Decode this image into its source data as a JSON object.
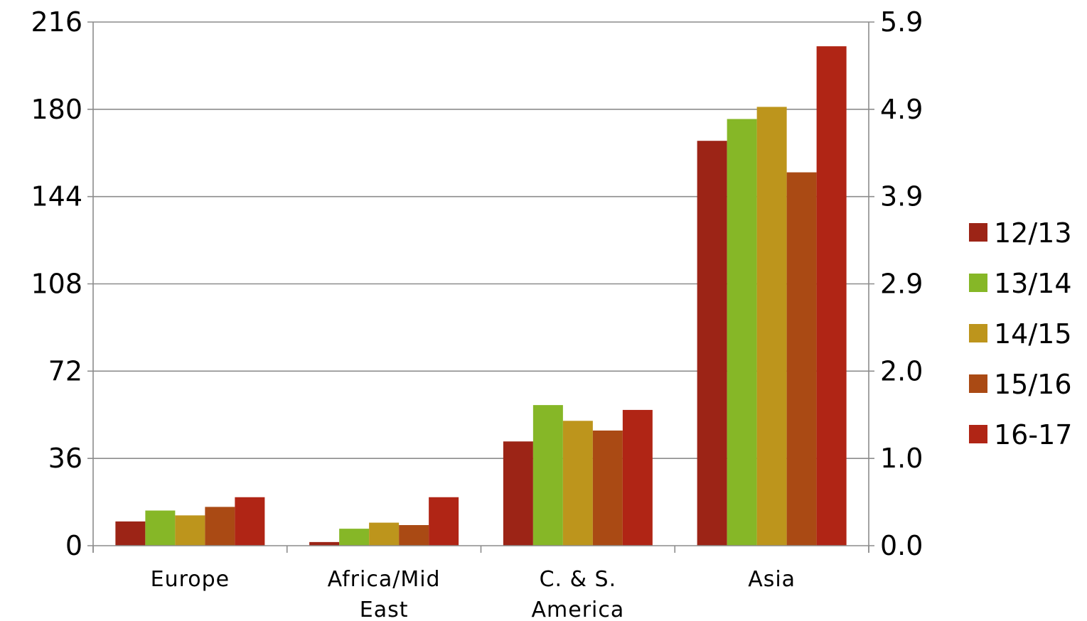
{
  "chart_data": {
    "type": "bar",
    "title": "",
    "xlabel": "",
    "ylabel": "",
    "categories": [
      [
        "Europe"
      ],
      [
        "Africa/Mid",
        "East"
      ],
      [
        "C. & S.",
        "America"
      ],
      [
        "Asia"
      ]
    ],
    "series": [
      {
        "name": "12/13",
        "color": "#9C2416",
        "values": [
          10,
          1.5,
          43,
          167
        ]
      },
      {
        "name": "13/14",
        "color": "#86B727",
        "values": [
          14.5,
          7,
          58,
          176
        ]
      },
      {
        "name": "14/15",
        "color": "#BD951C",
        "values": [
          12.5,
          9.5,
          51.5,
          181
        ]
      },
      {
        "name": "15/16",
        "color": "#AA4A14",
        "values": [
          16,
          8.5,
          47.5,
          154
        ]
      },
      {
        "name": "16-17",
        "color": "#B02515",
        "values": [
          20,
          20,
          56,
          206
        ]
      }
    ],
    "ylim": [
      0,
      216
    ],
    "yticks_left": [
      "0",
      "36",
      "72",
      "108",
      "144",
      "180",
      "216"
    ],
    "yticks_right": [
      "0.0",
      "1.0",
      "2.0",
      "2.9",
      "3.9",
      "4.9",
      "5.9"
    ],
    "grid": true,
    "legend": "right"
  }
}
